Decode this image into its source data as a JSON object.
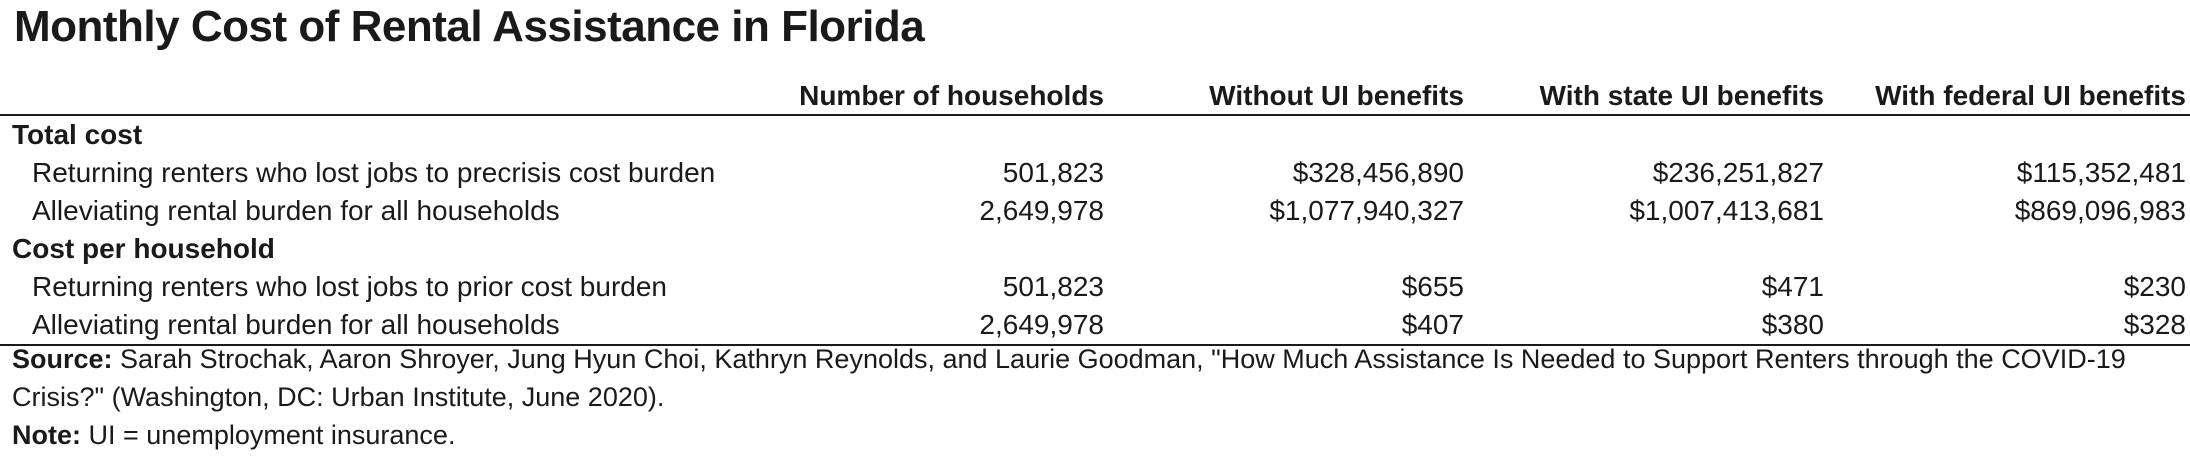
{
  "chart_data": {
    "type": "table",
    "title": "Monthly Cost of Rental Assistance in Florida",
    "columns": [
      "",
      "Number of households",
      "Without UI benefits",
      "With state UI benefits",
      "With federal UI benefits"
    ],
    "sections": [
      {
        "name": "Total cost",
        "rows": [
          {
            "label": "Returning renters who lost jobs to precrisis cost burden",
            "values": [
              "501,823",
              "$328,456,890",
              "$236,251,827",
              "$115,352,481"
            ]
          },
          {
            "label": "Alleviating rental burden for all households",
            "values": [
              "2,649,978",
              "$1,077,940,327",
              "$1,007,413,681",
              "$869,096,983"
            ]
          }
        ]
      },
      {
        "name": "Cost per household",
        "rows": [
          {
            "label": "Returning renters who lost jobs to prior cost burden",
            "values": [
              "501,823",
              "$655",
              "$471",
              "$230"
            ]
          },
          {
            "label": "Alleviating rental burden for all households",
            "values": [
              "2,649,978",
              "$407",
              "$380",
              "$328"
            ]
          }
        ]
      }
    ],
    "source_label": "Source:",
    "source_text": "Sarah Strochak, Aaron Shroyer, Jung Hyun Choi, Kathryn Reynolds, and Laurie Goodman, \"How Much Assistance Is Needed to Support Renters through the COVID-19 Crisis?\" (Washington, DC: Urban Institute, June 2020).",
    "note_label": "Note:",
    "note_text": "UI = unemployment insurance."
  }
}
